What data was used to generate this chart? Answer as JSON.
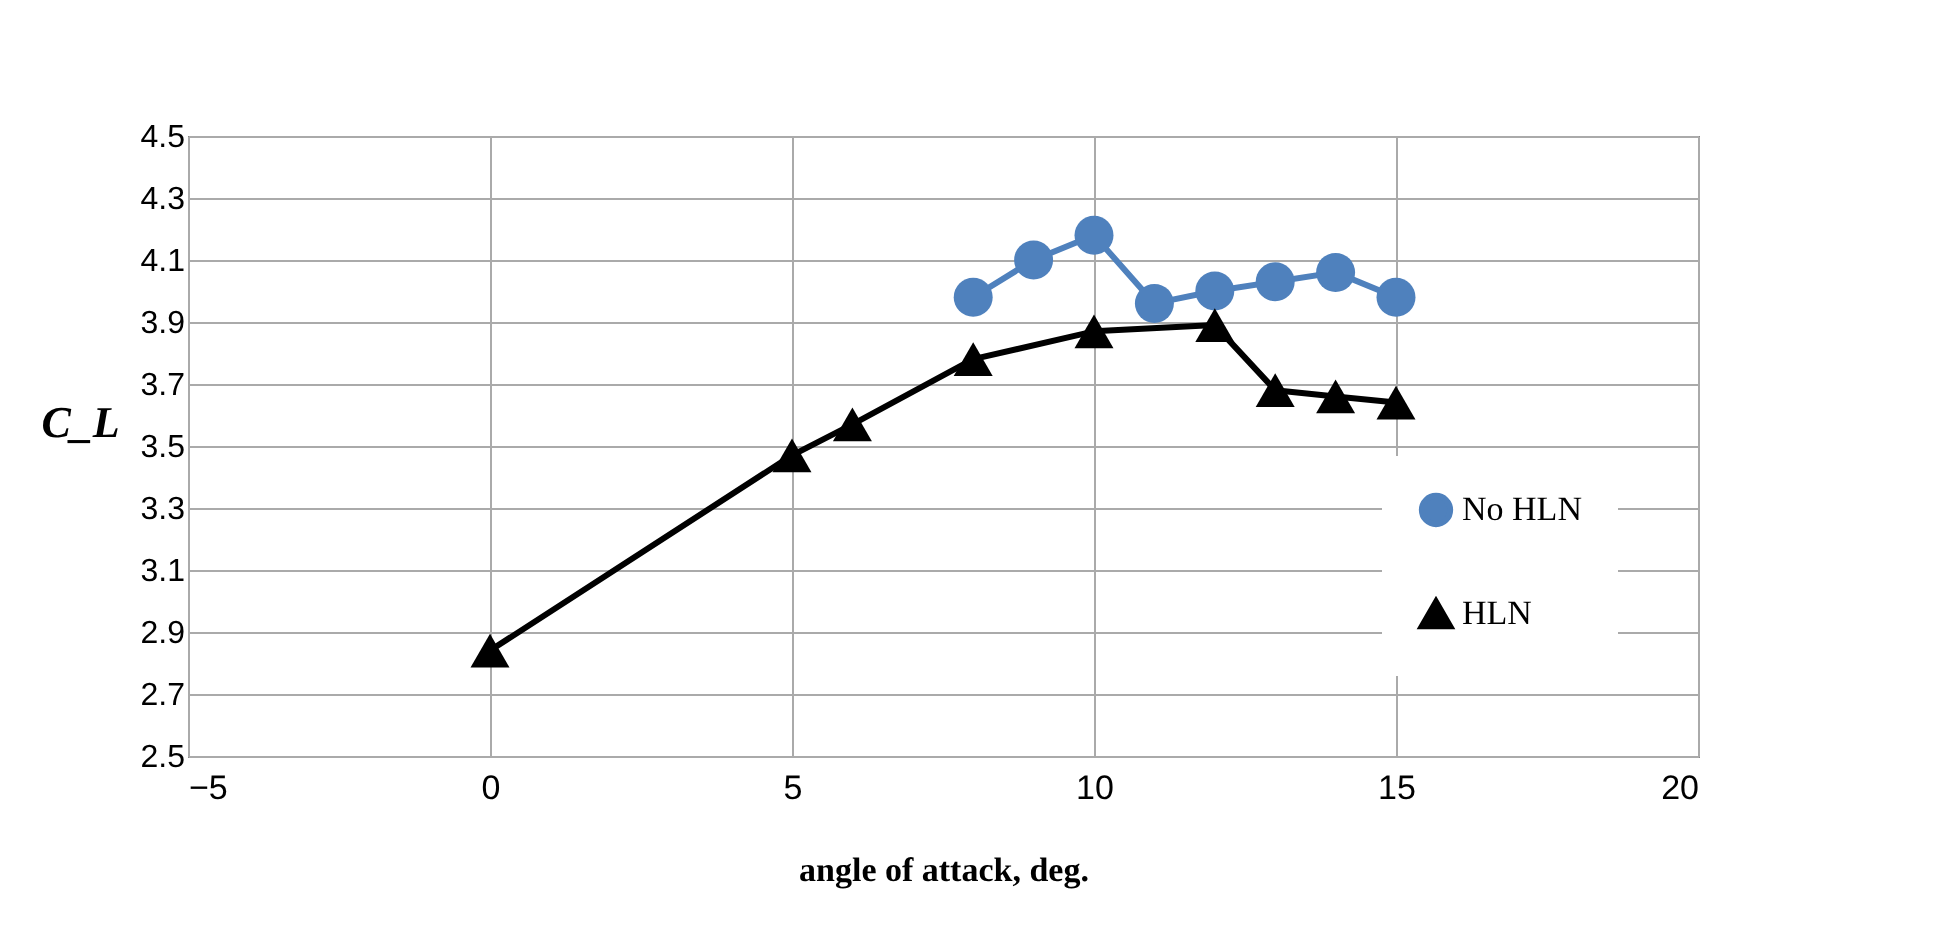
{
  "chart_data": {
    "type": "line",
    "xlabel": "angle of attack, deg.",
    "ylabel": "C_L",
    "xlim": [
      -5,
      20
    ],
    "xticks": [
      -5,
      0,
      5,
      10,
      15,
      20
    ],
    "ylim": [
      2.5,
      4.5
    ],
    "yticks": [
      2.5,
      2.7,
      2.9,
      3.1,
      3.3,
      3.5,
      3.7,
      3.9,
      4.1,
      4.3,
      4.5
    ],
    "grid": true,
    "legend": "bottom right",
    "series": [
      {
        "name": "No HLN",
        "color": "#4f81bd",
        "marker": "circle",
        "x": [
          8,
          9,
          10,
          11,
          12,
          13,
          14,
          15
        ],
        "values": [
          3.98,
          4.1,
          4.18,
          3.96,
          4.0,
          4.03,
          4.06,
          3.98
        ]
      },
      {
        "name": "HLN",
        "color": "#000000",
        "marker": "triangle",
        "x": [
          0,
          5,
          6,
          8,
          10,
          12,
          13,
          14,
          15
        ],
        "values": [
          2.84,
          3.47,
          3.57,
          3.78,
          3.87,
          3.89,
          3.68,
          3.66,
          3.64
        ]
      }
    ]
  }
}
